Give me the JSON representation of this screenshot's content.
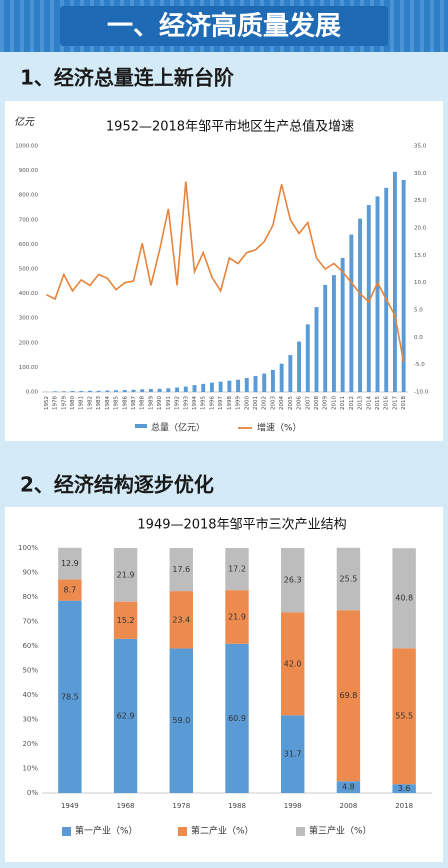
{
  "header": {
    "title": "一、经济高质量发展"
  },
  "sections": [
    {
      "title": "1、经济总量连上新台阶"
    },
    {
      "title": "2、经济结构逐步优化"
    }
  ],
  "chart_data": [
    {
      "type": "bar",
      "title": "1952—2018年邹平市地区生产总值及增速",
      "y_label": "亿元",
      "categories": [
        "1952",
        "1978",
        "1979",
        "1980",
        "1981",
        "1982",
        "1983",
        "1984",
        "1985",
        "1986",
        "1987",
        "1988",
        "1989",
        "1990",
        "1991",
        "1992",
        "1993",
        "1994",
        "1995",
        "1996",
        "1997",
        "1998",
        "1999",
        "2000",
        "2001",
        "2002",
        "2003",
        "2004",
        "2005",
        "2006",
        "2007",
        "2008",
        "2009",
        "2010",
        "2011",
        "2012",
        "2013",
        "2014",
        "2015",
        "2016",
        "2017",
        "2018"
      ],
      "series": [
        {
          "name": "总量（亿元）",
          "type": "bar",
          "color": "#5b9bd5",
          "values": [
            1,
            3,
            3,
            4,
            4,
            5,
            5,
            6,
            7,
            8,
            9,
            11,
            12,
            13,
            15,
            18,
            22,
            28,
            33,
            38,
            42,
            46,
            50,
            57,
            65,
            75,
            90,
            115,
            150,
            205,
            275,
            345,
            435,
            475,
            545,
            640,
            705,
            760,
            795,
            830,
            895,
            862
          ]
        },
        {
          "name": "增速（%）",
          "type": "line",
          "axis": "y2",
          "color": "#e8833a",
          "values": [
            7.8,
            7.0,
            11.5,
            8.5,
            10.5,
            9.5,
            11.5,
            10.8,
            8.7,
            10,
            10.3,
            17.2,
            9.5,
            16,
            23.5,
            9.5,
            28.5,
            12,
            15.5,
            11,
            8.5,
            14.5,
            13.5,
            15.5,
            16,
            17.5,
            20.5,
            28,
            21.5,
            19,
            21,
            14.5,
            12.5,
            13.5,
            12,
            10,
            8,
            6.5,
            10,
            7,
            4,
            -4.5
          ]
        }
      ],
      "ylim": [
        0,
        1000
      ],
      "yticks": [
        {
          "value": 0,
          "label": "0.00"
        },
        {
          "value": 100,
          "label": "100.00"
        },
        {
          "value": 200,
          "label": "200.00"
        },
        {
          "value": 300,
          "label": "300.00"
        },
        {
          "value": 400,
          "label": "400.00"
        },
        {
          "value": 500,
          "label": "500.00"
        },
        {
          "value": 600,
          "label": "600.00"
        },
        {
          "value": 700,
          "label": "700.00"
        },
        {
          "value": 800,
          "label": "800.00"
        },
        {
          "value": 900,
          "label": "900.00"
        },
        {
          "value": 1000,
          "label": "1000.00"
        }
      ],
      "y2lim": [
        -10,
        35
      ],
      "y2ticks": [
        {
          "value": -10,
          "label": "-10.0"
        },
        {
          "value": -5,
          "label": "-5.0"
        },
        {
          "value": 0,
          "label": "0.0"
        },
        {
          "value": 5,
          "label": "5.0"
        },
        {
          "value": 10,
          "label": "10.0"
        },
        {
          "value": 15,
          "label": "15.0"
        },
        {
          "value": 20,
          "label": "20.0"
        },
        {
          "value": 25,
          "label": "25.0"
        },
        {
          "value": 30,
          "label": "30.0"
        },
        {
          "value": 35,
          "label": "35.0"
        }
      ],
      "grid": false,
      "legend": "bottom"
    },
    {
      "type": "bar",
      "stacked": true,
      "title": "1949—2018年邹平市三次产业结构",
      "categories": [
        "1949",
        "1968",
        "1978",
        "1988",
        "1998",
        "2008",
        "2018"
      ],
      "series": [
        {
          "name": "第一产业（%）",
          "color": "#5b9bd5",
          "values": [
            78.5,
            62.9,
            59.0,
            60.9,
            31.7,
            4.8,
            3.6
          ],
          "value_labels": [
            "78.5",
            "62.9",
            "59.0",
            "60.9",
            "31.7",
            "4.8",
            "3.6"
          ]
        },
        {
          "name": "第二产业（%）",
          "color": "#ed8b4e",
          "values": [
            8.7,
            15.2,
            23.4,
            21.9,
            42.0,
            69.8,
            55.5
          ],
          "value_labels": [
            "8.7",
            "15.2",
            "23.4",
            "21.9",
            "42.0",
            "69.8",
            "55.5"
          ]
        },
        {
          "name": "第三产业（%）",
          "color": "#bdbdbd",
          "values": [
            12.9,
            21.9,
            17.6,
            17.2,
            26.3,
            25.5,
            40.8
          ],
          "value_labels": [
            "12.9",
            "21.9",
            "17.6",
            "17.2",
            "26.3",
            "25.5",
            "40.8"
          ]
        }
      ],
      "ylim": [
        0,
        100
      ],
      "yticks": [
        {
          "value": 0,
          "label": "0%"
        },
        {
          "value": 10,
          "label": "10%"
        },
        {
          "value": 20,
          "label": "20%"
        },
        {
          "value": 30,
          "label": "30%"
        },
        {
          "value": 40,
          "label": "40%"
        },
        {
          "value": 50,
          "label": "50%"
        },
        {
          "value": 60,
          "label": "60%"
        },
        {
          "value": 70,
          "label": "70%"
        },
        {
          "value": 80,
          "label": "80%"
        },
        {
          "value": 90,
          "label": "90%"
        },
        {
          "value": 100,
          "label": "100%"
        }
      ],
      "grid": false,
      "legend": "bottom"
    }
  ]
}
